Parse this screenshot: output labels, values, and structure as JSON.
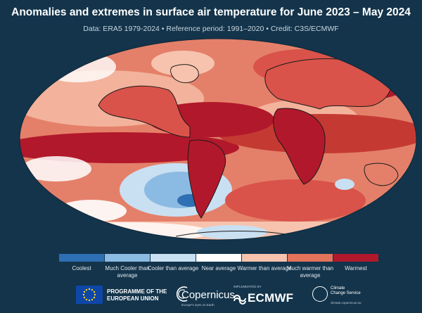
{
  "header": {
    "title": "Anomalies and extremes in surface air temperature for June 2023 – May 2024",
    "subtitle": "Data: ERA5 1979-2024 • Reference period: 1991–2020 • Credit: C3S/ECMWF"
  },
  "legend": {
    "items": [
      {
        "label": "Coolest",
        "color": "#2f6fb3"
      },
      {
        "label": "Much Cooler than average",
        "color": "#8bbbe2"
      },
      {
        "label": "Cooler than average",
        "color": "#c9e0f2"
      },
      {
        "label": "Near average",
        "color": "#ffffff"
      },
      {
        "label": "Warmer than average",
        "color": "#f7c3ae"
      },
      {
        "label": "Much warmer than average",
        "color": "#e3735b"
      },
      {
        "label": "Warmest",
        "color": "#b2182b"
      }
    ]
  },
  "footer": {
    "eu_line1": "PROGRAMME OF THE",
    "eu_line2": "EUROPEAN UNION",
    "copernicus": "Copernicus",
    "copernicus_tagline": "Europe's eyes on Earth",
    "implemented_by": "IMPLEMENTED BY",
    "ecmwf": "ECMWF",
    "c3s_line1": "Climate",
    "c3s_line2": "Change Service",
    "c3s_url": "climate.copernicus.eu"
  },
  "colors": {
    "background": "#13344b",
    "ocean_base": "#e4806a",
    "warmest": "#b2182b",
    "coolest": "#2f6fb3"
  }
}
